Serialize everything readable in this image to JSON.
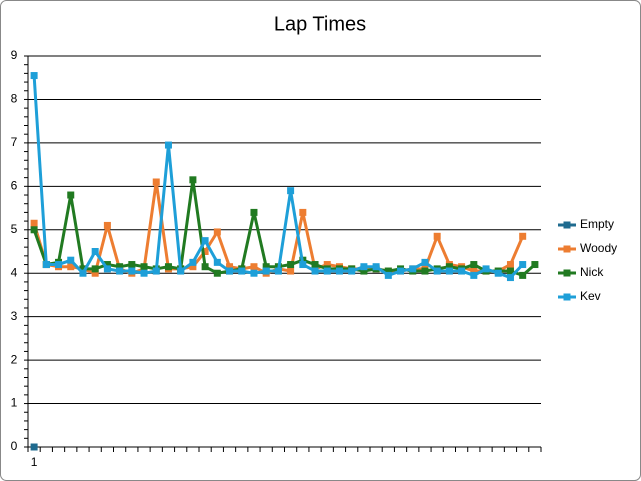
{
  "chart_data": {
    "type": "line",
    "title": "Lap Times",
    "categories": [
      "1",
      null,
      null,
      null,
      null,
      null,
      null,
      null,
      null,
      null,
      null,
      null,
      null,
      null,
      null,
      null,
      null,
      null,
      null,
      null,
      null,
      null,
      null,
      null,
      null,
      null,
      null,
      null,
      null,
      null,
      null,
      null,
      null,
      null,
      null,
      null,
      null,
      null,
      null,
      null,
      null,
      null
    ],
    "series": [
      {
        "name": "Empty",
        "color": "#1f6b8f",
        "values": [
          0,
          null,
          null,
          null,
          null,
          null,
          null,
          null,
          null,
          null,
          null,
          null,
          null,
          null,
          null,
          null,
          null,
          null,
          null,
          null,
          null,
          null,
          null,
          null,
          null,
          null,
          null,
          null,
          null,
          null,
          null,
          null,
          null,
          null,
          null,
          null,
          null,
          null,
          null,
          null,
          null,
          null
        ]
      },
      {
        "name": "Woody",
        "color": "#ed7d31",
        "values": [
          5.15,
          4.2,
          4.15,
          4.15,
          4.1,
          4.0,
          5.1,
          4.1,
          4.0,
          4.1,
          6.1,
          4.1,
          4.1,
          4.15,
          4.5,
          4.95,
          4.15,
          4.1,
          4.15,
          4.0,
          4.1,
          4.05,
          5.4,
          4.1,
          4.2,
          4.15,
          4.1,
          4.1,
          4.1,
          4.05,
          4.05,
          4.1,
          4.1,
          4.85,
          4.2,
          4.15,
          4.05,
          4.05,
          4.05,
          4.2,
          4.85,
          null
        ]
      },
      {
        "name": "Nick",
        "color": "#217a21",
        "values": [
          5.0,
          4.2,
          4.25,
          5.8,
          4.1,
          4.1,
          4.2,
          4.15,
          4.2,
          4.15,
          4.1,
          4.15,
          4.1,
          6.15,
          4.15,
          4.0,
          4.05,
          4.1,
          5.4,
          4.15,
          4.15,
          4.2,
          4.3,
          4.2,
          4.1,
          4.1,
          4.1,
          4.05,
          4.1,
          4.05,
          4.1,
          4.05,
          4.05,
          4.1,
          4.15,
          4.1,
          4.2,
          4.05,
          4.05,
          4.05,
          3.95,
          4.2
        ]
      },
      {
        "name": "Kev",
        "color": "#1e9fd8",
        "values": [
          8.55,
          4.2,
          4.2,
          4.3,
          4.0,
          4.5,
          4.1,
          4.05,
          4.05,
          4.0,
          4.05,
          6.95,
          4.05,
          4.25,
          4.75,
          4.25,
          4.05,
          4.05,
          4.0,
          4.05,
          4.05,
          5.9,
          4.2,
          4.05,
          4.05,
          4.05,
          4.05,
          4.15,
          4.15,
          3.95,
          4.05,
          4.1,
          4.25,
          4.05,
          4.05,
          4.05,
          3.95,
          4.1,
          4.0,
          3.9,
          4.2,
          null
        ]
      }
    ],
    "ylim": [
      0,
      9
    ],
    "yticks": [
      0,
      1,
      2,
      3,
      4,
      5,
      6,
      7,
      8,
      9
    ],
    "grid": true,
    "legend": "right"
  }
}
